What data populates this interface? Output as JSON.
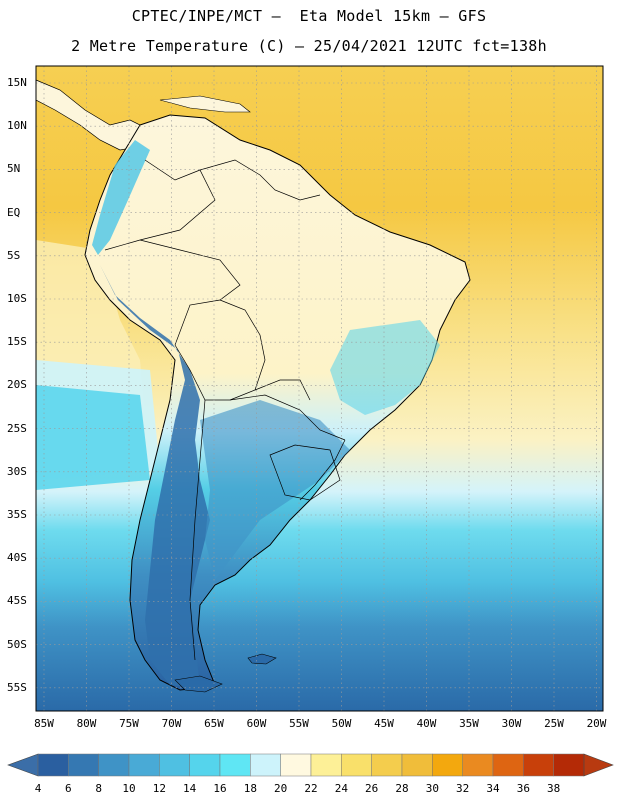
{
  "header": {
    "line1": "CPTEC/INPE/MCT –  Eta Model 15km – GFS",
    "line2": "2 Metre Temperature (C) – 25/04/2021 12UTC fct=138h"
  },
  "map": {
    "lat_labels": [
      "15N",
      "10N",
      "5N",
      "EQ",
      "5S",
      "10S",
      "15S",
      "20S",
      "25S",
      "30S",
      "35S",
      "40S",
      "45S",
      "50S",
      "55S"
    ],
    "lon_labels": [
      "85W",
      "80W",
      "75W",
      "70W",
      "65W",
      "60W",
      "55W",
      "50W",
      "45W",
      "40W",
      "35W",
      "30W",
      "25W",
      "20W"
    ],
    "colors": {
      "ocean_warm": "#f5c842",
      "ocean_mid": "#fbe07a",
      "land_warm": "#fdf6dc",
      "cold_south": "#2a6aa8",
      "cyan": "#5fd6ea"
    }
  },
  "colorbar": {
    "labels": [
      "4",
      "6",
      "8",
      "10",
      "12",
      "14",
      "16",
      "18",
      "20",
      "22",
      "24",
      "26",
      "28",
      "30",
      "32",
      "34",
      "36",
      "38"
    ],
    "colors": [
      "#2a5fa0",
      "#3578b2",
      "#3f93c6",
      "#49aad6",
      "#4fc0e2",
      "#55d4ec",
      "#5fe6f4",
      "#cdf3fb",
      "#fff9e0",
      "#fdf097",
      "#f9e06a",
      "#f4cd4d",
      "#f0bd3a",
      "#f3a80e",
      "#ea8a20",
      "#de6512",
      "#c8400a",
      "#b42a06"
    ],
    "left_arrow": "#3b6ea8",
    "right_arrow": "#b83a10"
  }
}
